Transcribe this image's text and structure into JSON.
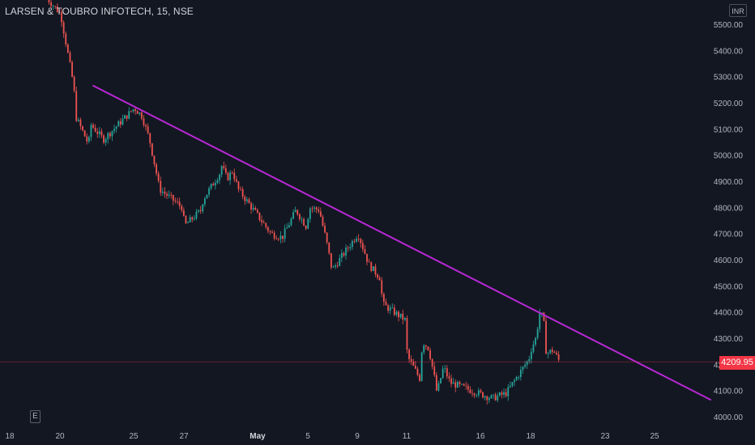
{
  "header": {
    "title": "LARSEN & TOUBRO INFOTECH, 15, NSE",
    "currency": "INR"
  },
  "toolbar": {
    "e_label": "E"
  },
  "colors": {
    "background": "#131722",
    "up": "#26a69a",
    "down": "#ef5350",
    "trendline": "#b928d6",
    "axis_text": "#b2b5be",
    "price_tag": "#f23645"
  },
  "chart_data": {
    "type": "candlestick",
    "symbol": "LARSEN & TOUBRO INFOTECH",
    "interval": "15",
    "exchange": "NSE",
    "currency": "INR",
    "x_ticks": [
      "18",
      "20",
      "25",
      "27",
      "May",
      "5",
      "9",
      "11",
      "16",
      "18",
      "23",
      "25"
    ],
    "y_ticks": [
      4000,
      4100,
      4200,
      4300,
      4400,
      4500,
      4600,
      4700,
      4800,
      4900,
      5000,
      5100,
      5200,
      5300,
      5400,
      5500
    ],
    "y_tick_labels": [
      "4000.00",
      "4100.00",
      "4200.00",
      "4300.00",
      "4400.00",
      "4500.00",
      "4600.00",
      "4700.00",
      "4800.00",
      "4900.00",
      "5000.00",
      "5100.00",
      "5200.00",
      "5300.00",
      "5400.00",
      "5500.00"
    ],
    "ylim": [
      3980,
      5560
    ],
    "last_price": 4209.95,
    "last_price_label": "4209.95",
    "path_keypoints": [
      [
        "Apr 19",
        5600
      ],
      [
        "Apr 20",
        5540
      ],
      [
        "Apr 20",
        5260
      ],
      [
        "Apr 21",
        5150
      ],
      [
        "Apr 21",
        5040
      ],
      [
        "Apr 22",
        5120
      ],
      [
        "Apr 22",
        5060
      ],
      [
        "Apr 25",
        5180
      ],
      [
        "Apr 25",
        5150
      ],
      [
        "Apr 25",
        5060
      ],
      [
        "Apr 25",
        4920
      ],
      [
        "Apr 26",
        4870
      ],
      [
        "Apr 26",
        4800
      ],
      [
        "Apr 27",
        4730
      ],
      [
        "Apr 27",
        4790
      ],
      [
        "Apr 28",
        4830
      ],
      [
        "Apr 28",
        4930
      ],
      [
        "Apr 29",
        4960
      ],
      [
        "Apr 29",
        4910
      ],
      [
        "Apr 29",
        4940
      ],
      [
        "Apr 29",
        4870
      ],
      [
        "May 2",
        4700
      ],
      [
        "May 2",
        4685
      ],
      [
        "May 4",
        4790
      ],
      [
        "May 4",
        4720
      ],
      [
        "May 5",
        4800
      ],
      [
        "May 5",
        4790
      ],
      [
        "May 6",
        4760
      ],
      [
        "May 6",
        4670
      ],
      [
        "May 6",
        4560
      ],
      [
        "May 9",
        4700
      ],
      [
        "May 9",
        4580
      ],
      [
        "May 9",
        4530
      ],
      [
        "May 10",
        4430
      ],
      [
        "May 10",
        4370
      ],
      [
        "May 11",
        4230
      ],
      [
        "May 11",
        4140
      ],
      [
        "May 12",
        4290
      ],
      [
        "May 12",
        4260
      ],
      [
        "May 12",
        4130
      ],
      [
        "May 13",
        4090
      ],
      [
        "May 13",
        4190
      ],
      [
        "May 13",
        4130
      ],
      [
        "May 16",
        4070
      ],
      [
        "May 17",
        4090
      ],
      [
        "May 17",
        4220
      ],
      [
        "May 18",
        4260
      ],
      [
        "May 18",
        4300
      ],
      [
        "May 18",
        4410
      ],
      [
        "May 18",
        4340
      ],
      [
        "May 19",
        4240
      ],
      [
        "May 19",
        4255
      ],
      [
        "May 19",
        4209.95
      ]
    ],
    "trendline": {
      "start": [
        "Apr 21",
        5265
      ],
      "end": [
        "May 27",
        4065
      ]
    },
    "grid": false,
    "legend": "none"
  }
}
